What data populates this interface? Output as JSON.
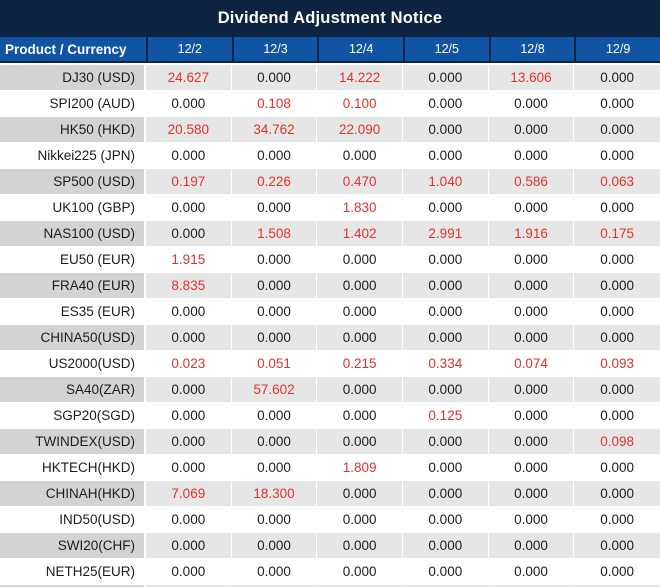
{
  "title": "Dividend Adjustment Notice",
  "table": {
    "product_header": "Product / Currency",
    "date_headers": [
      "12/2",
      "12/3",
      "12/4",
      "12/5",
      "12/8",
      "12/9"
    ],
    "rows": [
      {
        "product": "DJ30 (USD)",
        "values": [
          "24.627",
          "0.000",
          "14.222",
          "0.000",
          "13.606",
          "0.000"
        ],
        "red": [
          1,
          0,
          1,
          0,
          1,
          0
        ]
      },
      {
        "product": "SPI200 (AUD)",
        "values": [
          "0.000",
          "0.108",
          "0.100",
          "0.000",
          "0.000",
          "0.000"
        ],
        "red": [
          0,
          1,
          1,
          0,
          0,
          0
        ]
      },
      {
        "product": "HK50 (HKD)",
        "values": [
          "20.580",
          "34.762",
          "22.090",
          "0.000",
          "0.000",
          "0.000"
        ],
        "red": [
          1,
          1,
          1,
          0,
          0,
          0
        ]
      },
      {
        "product": "Nikkei225 (JPN)",
        "values": [
          "0.000",
          "0.000",
          "0.000",
          "0.000",
          "0.000",
          "0.000"
        ],
        "red": [
          0,
          0,
          0,
          0,
          0,
          0
        ]
      },
      {
        "product": "SP500 (USD)",
        "values": [
          "0.197",
          "0.226",
          "0.470",
          "1.040",
          "0.586",
          "0.063"
        ],
        "red": [
          1,
          1,
          1,
          1,
          1,
          1
        ]
      },
      {
        "product": "UK100 (GBP)",
        "values": [
          "0.000",
          "0.000",
          "1.830",
          "0.000",
          "0.000",
          "0.000"
        ],
        "red": [
          0,
          0,
          1,
          0,
          0,
          0
        ]
      },
      {
        "product": "NAS100 (USD)",
        "values": [
          "0.000",
          "1.508",
          "1.402",
          "2.991",
          "1.916",
          "0.175"
        ],
        "red": [
          0,
          1,
          1,
          1,
          1,
          1
        ]
      },
      {
        "product": "EU50 (EUR)",
        "values": [
          "1.915",
          "0.000",
          "0.000",
          "0.000",
          "0.000",
          "0.000"
        ],
        "red": [
          1,
          0,
          0,
          0,
          0,
          0
        ]
      },
      {
        "product": "FRA40 (EUR)",
        "values": [
          "8.835",
          "0.000",
          "0.000",
          "0.000",
          "0.000",
          "0.000"
        ],
        "red": [
          1,
          0,
          0,
          0,
          0,
          0
        ]
      },
      {
        "product": "ES35 (EUR)",
        "values": [
          "0.000",
          "0.000",
          "0.000",
          "0.000",
          "0.000",
          "0.000"
        ],
        "red": [
          0,
          0,
          0,
          0,
          0,
          0
        ]
      },
      {
        "product": "CHINA50(USD)",
        "values": [
          "0.000",
          "0.000",
          "0.000",
          "0.000",
          "0.000",
          "0.000"
        ],
        "red": [
          0,
          0,
          0,
          0,
          0,
          0
        ]
      },
      {
        "product": "US2000(USD)",
        "values": [
          "0.023",
          "0.051",
          "0.215",
          "0.334",
          "0.074",
          "0.093"
        ],
        "red": [
          1,
          1,
          1,
          1,
          1,
          1
        ]
      },
      {
        "product": "SA40(ZAR)",
        "values": [
          "0.000",
          "57.602",
          "0.000",
          "0.000",
          "0.000",
          "0.000"
        ],
        "red": [
          0,
          1,
          0,
          0,
          0,
          0
        ]
      },
      {
        "product": "SGP20(SGD)",
        "values": [
          "0.000",
          "0.000",
          "0.000",
          "0.125",
          "0.000",
          "0.000"
        ],
        "red": [
          0,
          0,
          0,
          1,
          0,
          0
        ]
      },
      {
        "product": "TWINDEX(USD)",
        "values": [
          "0.000",
          "0.000",
          "0.000",
          "0.000",
          "0.000",
          "0.098"
        ],
        "red": [
          0,
          0,
          0,
          0,
          0,
          1
        ]
      },
      {
        "product": "HKTECH(HKD)",
        "values": [
          "0.000",
          "0.000",
          "1.809",
          "0.000",
          "0.000",
          "0.000"
        ],
        "red": [
          0,
          0,
          1,
          0,
          0,
          0
        ]
      },
      {
        "product": "CHINAH(HKD)",
        "values": [
          "7.069",
          "18.300",
          "0.000",
          "0.000",
          "0.000",
          "0.000"
        ],
        "red": [
          1,
          1,
          0,
          0,
          0,
          0
        ]
      },
      {
        "product": "IND50(USD)",
        "values": [
          "0.000",
          "0.000",
          "0.000",
          "0.000",
          "0.000",
          "0.000"
        ],
        "red": [
          0,
          0,
          0,
          0,
          0,
          0
        ]
      },
      {
        "product": "SWI20(CHF)",
        "values": [
          "0.000",
          "0.000",
          "0.000",
          "0.000",
          "0.000",
          "0.000"
        ],
        "red": [
          0,
          0,
          0,
          0,
          0,
          0
        ]
      },
      {
        "product": "NETH25(EUR)",
        "values": [
          "0.000",
          "0.000",
          "0.000",
          "0.000",
          "0.000",
          "0.000"
        ],
        "red": [
          0,
          0,
          0,
          0,
          0,
          0
        ]
      }
    ]
  },
  "colors": {
    "title_bar_bg": "#0d2342",
    "header_cell_bg": "#1254a4",
    "header_text": "#ffffff",
    "row_gray_product_bg": "#d3d3d3",
    "row_gray_value_bg": "#e6e6e6",
    "row_white_bg": "#ffffff",
    "value_red": "#e5312b",
    "value_black": "#1c1c1c"
  }
}
